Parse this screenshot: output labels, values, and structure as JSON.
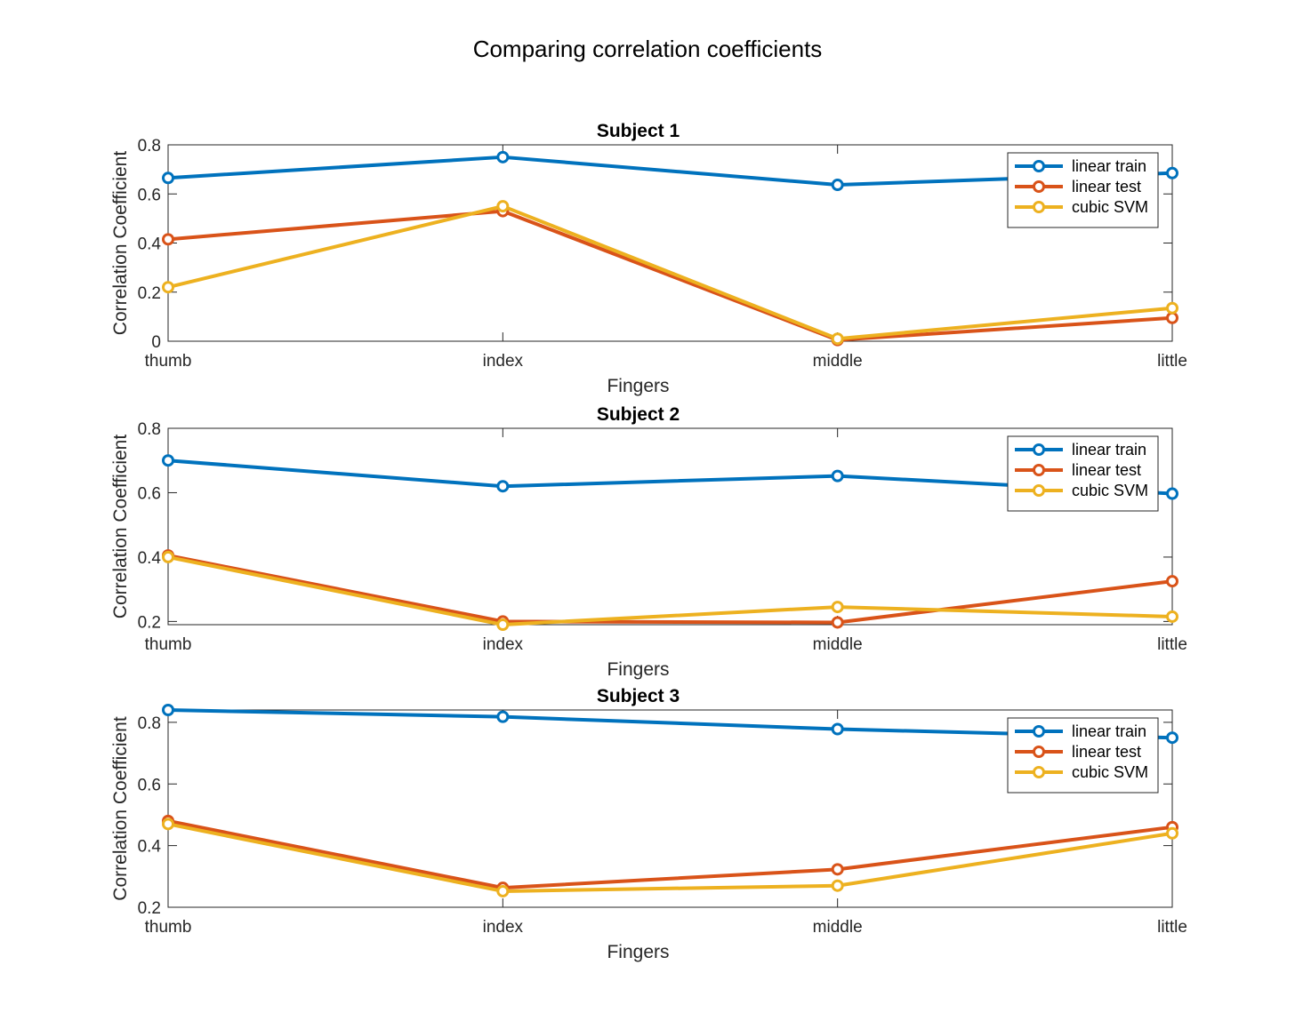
{
  "figure_title": "Comparing correlation coefficients",
  "chart_data": [
    {
      "type": "line",
      "title": "Subject 1",
      "xlabel": "Fingers",
      "ylabel": "Correlation Coefficient",
      "categories": [
        "thumb",
        "index",
        "middle",
        "little"
      ],
      "ylim": [
        0,
        0.8
      ],
      "yticks": [
        0,
        0.2,
        0.4,
        0.6,
        0.8
      ],
      "ytick_labels": [
        "0",
        "0.2",
        "0.4",
        "0.6",
        "0.8"
      ],
      "legend_position": "top-right",
      "series": [
        {
          "name": "linear train",
          "color": "#0072BD",
          "values": [
            0.665,
            0.75,
            0.637,
            0.685
          ]
        },
        {
          "name": "linear test",
          "color": "#D95319",
          "values": [
            0.415,
            0.53,
            0.005,
            0.095
          ]
        },
        {
          "name": "cubic SVM",
          "color": "#EDB120",
          "values": [
            0.22,
            0.55,
            0.01,
            0.135
          ]
        }
      ]
    },
    {
      "type": "line",
      "title": "Subject 2",
      "xlabel": "Fingers",
      "ylabel": "Correlation Coefficient",
      "categories": [
        "thumb",
        "index",
        "middle",
        "little"
      ],
      "ylim": [
        0.19,
        0.8
      ],
      "yticks": [
        0.2,
        0.4,
        0.6,
        0.8
      ],
      "ytick_labels": [
        "0.2",
        "0.4",
        "0.6",
        "0.8"
      ],
      "legend_position": "top-right",
      "series": [
        {
          "name": "linear train",
          "color": "#0072BD",
          "values": [
            0.7,
            0.62,
            0.652,
            0.597
          ]
        },
        {
          "name": "linear test",
          "color": "#D95319",
          "values": [
            0.405,
            0.2,
            0.197,
            0.325
          ]
        },
        {
          "name": "cubic SVM",
          "color": "#EDB120",
          "values": [
            0.4,
            0.19,
            0.245,
            0.215
          ]
        }
      ]
    },
    {
      "type": "line",
      "title": "Subject 3",
      "xlabel": "Fingers",
      "ylabel": "Correlation Coefficient",
      "categories": [
        "thumb",
        "index",
        "middle",
        "little"
      ],
      "ylim": [
        0.2,
        0.84
      ],
      "yticks": [
        0.2,
        0.4,
        0.6,
        0.8
      ],
      "ytick_labels": [
        "0.2",
        "0.4",
        "0.6",
        "0.8"
      ],
      "legend_position": "top-right",
      "series": [
        {
          "name": "linear train",
          "color": "#0072BD",
          "values": [
            0.84,
            0.818,
            0.778,
            0.75
          ]
        },
        {
          "name": "linear test",
          "color": "#D95319",
          "values": [
            0.48,
            0.263,
            0.323,
            0.46
          ]
        },
        {
          "name": "cubic SVM",
          "color": "#EDB120",
          "values": [
            0.47,
            0.252,
            0.27,
            0.44
          ]
        }
      ]
    }
  ]
}
